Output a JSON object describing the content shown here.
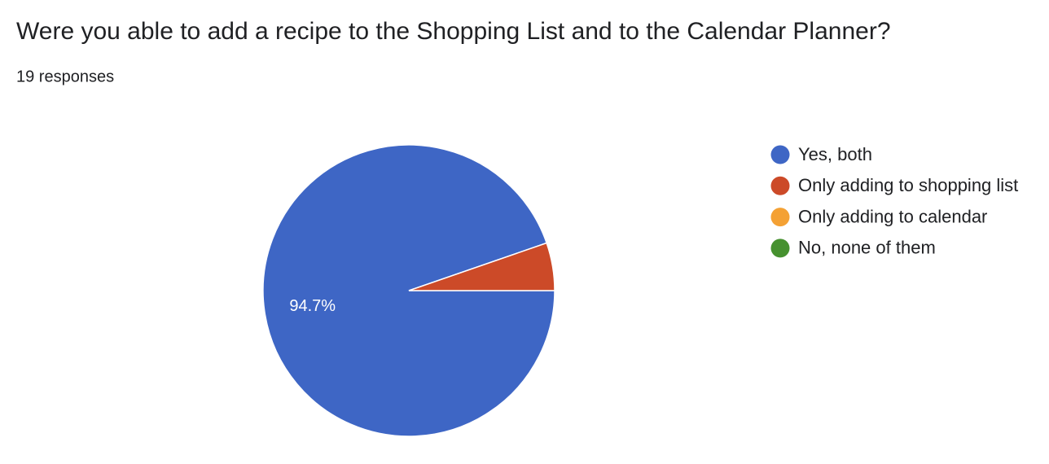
{
  "chart_data": {
    "type": "pie",
    "title": "Were you able to add a recipe to the Shopping List and to the Calendar Planner?",
    "subtitle": "19 responses",
    "categories": [
      "Yes, both",
      "Only adding to shopping list",
      "Only adding to calendar",
      "No, none of them"
    ],
    "values": [
      94.7,
      5.3,
      0,
      0
    ],
    "value_labels": [
      "94.7%",
      null,
      null,
      null
    ],
    "colors": [
      "#3e66c5",
      "#cc4a28",
      "#f4a134",
      "#46912f"
    ],
    "legend": "right"
  }
}
